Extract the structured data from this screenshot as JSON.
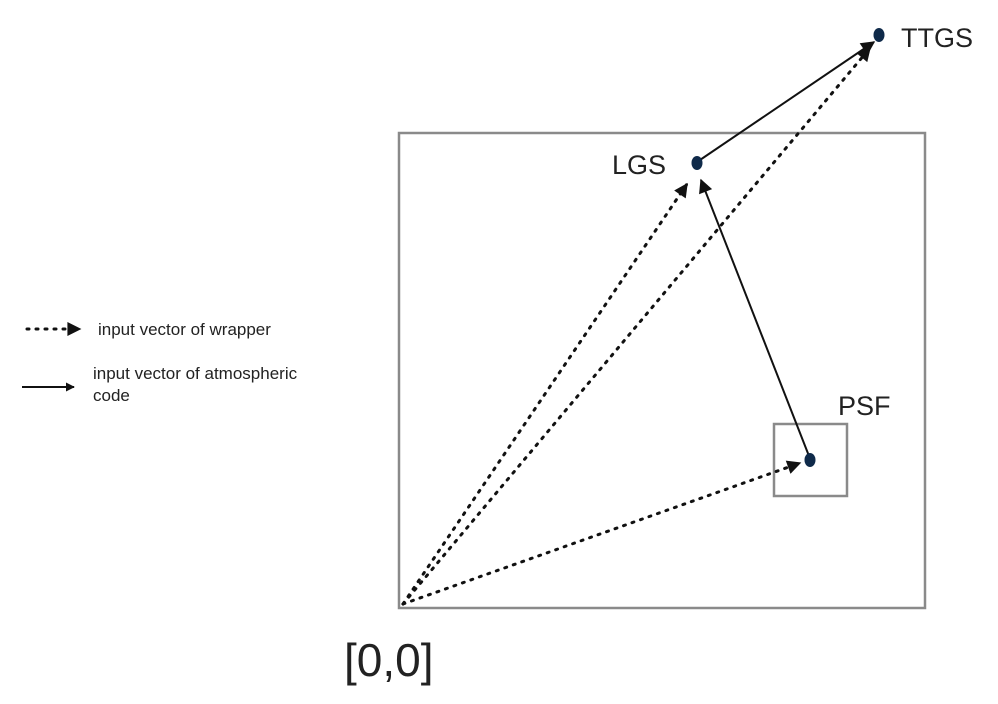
{
  "points": {
    "ttgs": "TTGS",
    "lgs": "LGS",
    "psf": "PSF",
    "origin": "[0,0]"
  },
  "legend": {
    "dotted": "input vector of wrapper",
    "solid_line1": "input vector of atmospheric",
    "solid_line2": "code"
  },
  "colors": {
    "point_fill": "#0f2a4a",
    "box_stroke": "#8a8a8a",
    "arrow": "#111111",
    "text": "#222222"
  }
}
